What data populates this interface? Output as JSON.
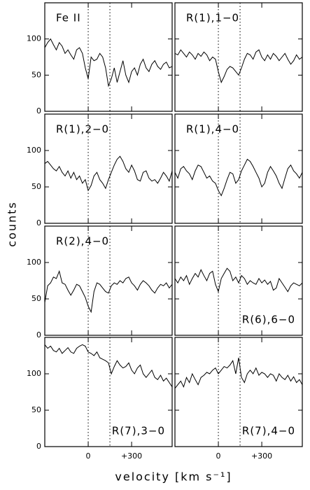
{
  "axis_labels": {
    "x": "velocity [km s⁻¹]",
    "y": "counts"
  },
  "chart_data": [
    {
      "type": "line",
      "label": "Fe II",
      "label_corner": "upper left",
      "color": "#000000",
      "x": [
        -300,
        -280,
        -260,
        -240,
        -220,
        -200,
        -180,
        -160,
        -140,
        -120,
        -100,
        -80,
        -60,
        -40,
        -20,
        0,
        20,
        40,
        60,
        80,
        100,
        120,
        140,
        160,
        180,
        200,
        220,
        240,
        260,
        280,
        300,
        320,
        340,
        360,
        380,
        400,
        420,
        440,
        460,
        480,
        500,
        520,
        540,
        560,
        580
      ],
      "values": [
        88,
        95,
        100,
        92,
        85,
        95,
        90,
        80,
        85,
        78,
        72,
        85,
        88,
        80,
        60,
        45,
        75,
        70,
        72,
        80,
        75,
        60,
        35,
        45,
        60,
        40,
        55,
        70,
        50,
        40,
        55,
        60,
        50,
        65,
        72,
        60,
        55,
        65,
        70,
        62,
        58,
        65,
        68,
        60,
        62
      ],
      "xlim": [
        -300,
        580
      ],
      "ylim": [
        0,
        150
      ],
      "xticks": [
        0,
        {
          "value": 300,
          "label": "+300"
        }
      ],
      "yticks": [
        0,
        50,
        100
      ],
      "markers": [
        0,
        150
      ]
    },
    {
      "type": "line",
      "label": "R(1),1−0",
      "label_corner": "upper left",
      "color": "#000000",
      "x": [
        -300,
        -280,
        -260,
        -240,
        -220,
        -200,
        -180,
        -160,
        -140,
        -120,
        -100,
        -80,
        -60,
        -40,
        -20,
        0,
        20,
        40,
        60,
        80,
        100,
        120,
        140,
        160,
        180,
        200,
        220,
        240,
        260,
        280,
        300,
        320,
        340,
        360,
        380,
        400,
        420,
        440,
        460,
        480,
        500,
        520,
        540,
        560,
        580
      ],
      "values": [
        80,
        78,
        85,
        80,
        75,
        82,
        78,
        72,
        80,
        76,
        82,
        78,
        70,
        75,
        72,
        55,
        40,
        48,
        58,
        62,
        60,
        55,
        50,
        60,
        72,
        80,
        78,
        72,
        82,
        85,
        75,
        70,
        78,
        72,
        80,
        76,
        70,
        75,
        80,
        72,
        65,
        70,
        78,
        72,
        75
      ],
      "xlim": [
        -300,
        580
      ],
      "ylim": [
        0,
        150
      ],
      "xticks": [
        0,
        {
          "value": 300,
          "label": "+300"
        }
      ],
      "yticks": [
        0,
        50,
        100
      ],
      "markers": [
        0,
        150
      ]
    },
    {
      "type": "line",
      "label": "R(1),2−0",
      "label_corner": "upper left",
      "color": "#000000",
      "x": [
        -300,
        -280,
        -260,
        -240,
        -220,
        -200,
        -180,
        -160,
        -140,
        -120,
        -100,
        -80,
        -60,
        -40,
        -20,
        0,
        20,
        40,
        60,
        80,
        100,
        120,
        140,
        160,
        180,
        200,
        220,
        240,
        260,
        280,
        300,
        320,
        340,
        360,
        380,
        400,
        420,
        440,
        460,
        480,
        500,
        520,
        540,
        560,
        580
      ],
      "values": [
        82,
        85,
        80,
        75,
        72,
        78,
        70,
        65,
        72,
        62,
        70,
        60,
        65,
        55,
        60,
        45,
        52,
        65,
        70,
        60,
        55,
        48,
        60,
        70,
        80,
        88,
        92,
        85,
        75,
        70,
        80,
        72,
        60,
        58,
        70,
        72,
        62,
        58,
        60,
        55,
        62,
        70,
        65,
        58,
        72
      ],
      "xlim": [
        -300,
        580
      ],
      "ylim": [
        0,
        150
      ],
      "xticks": [
        0,
        {
          "value": 300,
          "label": "+300"
        }
      ],
      "yticks": [
        0,
        50,
        100
      ],
      "markers": [
        0,
        150
      ]
    },
    {
      "type": "line",
      "label": "R(1),4−0",
      "label_corner": "upper left",
      "color": "#000000",
      "x": [
        -300,
        -280,
        -260,
        -240,
        -220,
        -200,
        -180,
        -160,
        -140,
        -120,
        -100,
        -80,
        -60,
        -40,
        -20,
        0,
        20,
        40,
        60,
        80,
        100,
        120,
        140,
        160,
        180,
        200,
        220,
        240,
        260,
        280,
        300,
        320,
        340,
        360,
        380,
        400,
        420,
        440,
        460,
        480,
        500,
        520,
        540,
        560,
        580
      ],
      "values": [
        70,
        62,
        75,
        78,
        72,
        68,
        60,
        72,
        80,
        78,
        70,
        62,
        65,
        58,
        55,
        45,
        38,
        48,
        60,
        70,
        68,
        55,
        60,
        72,
        80,
        88,
        85,
        78,
        70,
        62,
        50,
        55,
        70,
        78,
        72,
        65,
        55,
        48,
        62,
        75,
        80,
        72,
        68,
        62,
        70
      ],
      "xlim": [
        -300,
        580
      ],
      "ylim": [
        0,
        150
      ],
      "xticks": [
        0,
        {
          "value": 300,
          "label": "+300"
        }
      ],
      "yticks": [
        0,
        50,
        100
      ],
      "markers": [
        0,
        150
      ]
    },
    {
      "type": "line",
      "label": "R(2),4−0",
      "label_corner": "upper left",
      "color": "#000000",
      "x": [
        -300,
        -280,
        -260,
        -240,
        -220,
        -200,
        -180,
        -160,
        -140,
        -120,
        -100,
        -80,
        -60,
        -40,
        -20,
        0,
        20,
        40,
        60,
        80,
        100,
        120,
        140,
        160,
        180,
        200,
        220,
        240,
        260,
        280,
        300,
        320,
        340,
        360,
        380,
        400,
        420,
        440,
        460,
        480,
        500,
        520,
        540,
        560,
        580
      ],
      "values": [
        45,
        68,
        72,
        80,
        78,
        88,
        72,
        70,
        62,
        55,
        62,
        70,
        68,
        60,
        52,
        40,
        32,
        60,
        72,
        70,
        65,
        60,
        58,
        68,
        72,
        70,
        75,
        72,
        78,
        80,
        72,
        68,
        62,
        70,
        75,
        72,
        68,
        62,
        58,
        65,
        70,
        68,
        72,
        65,
        70
      ],
      "xlim": [
        -300,
        580
      ],
      "ylim": [
        0,
        150
      ],
      "xticks": [
        0,
        {
          "value": 300,
          "label": "+300"
        }
      ],
      "yticks": [
        0,
        50,
        100
      ],
      "markers": [
        0,
        150
      ]
    },
    {
      "type": "line",
      "label": "R(6),6−0",
      "label_corner": "lower right",
      "color": "#000000",
      "x": [
        -300,
        -280,
        -260,
        -240,
        -220,
        -200,
        -180,
        -160,
        -140,
        -120,
        -100,
        -80,
        -60,
        -40,
        -20,
        0,
        20,
        40,
        60,
        80,
        100,
        120,
        140,
        160,
        180,
        200,
        220,
        240,
        260,
        280,
        300,
        320,
        340,
        360,
        380,
        400,
        420,
        440,
        460,
        480,
        500,
        520,
        540,
        560,
        580
      ],
      "values": [
        78,
        72,
        80,
        75,
        82,
        70,
        78,
        85,
        80,
        90,
        82,
        75,
        85,
        88,
        70,
        60,
        78,
        85,
        92,
        88,
        75,
        80,
        72,
        82,
        78,
        70,
        75,
        72,
        70,
        78,
        72,
        76,
        70,
        74,
        62,
        65,
        78,
        72,
        66,
        60,
        68,
        72,
        70,
        68,
        72
      ],
      "xlim": [
        -300,
        580
      ],
      "ylim": [
        0,
        150
      ],
      "xticks": [
        0,
        {
          "value": 300,
          "label": "+300"
        }
      ],
      "yticks": [
        0,
        50,
        100
      ],
      "markers": [
        0,
        150
      ]
    },
    {
      "type": "line",
      "label": "R(7),3−0",
      "label_corner": "lower right",
      "color": "#000000",
      "x": [
        -300,
        -280,
        -260,
        -240,
        -220,
        -200,
        -180,
        -160,
        -140,
        -120,
        -100,
        -80,
        -60,
        -40,
        -20,
        0,
        20,
        40,
        60,
        80,
        100,
        120,
        140,
        160,
        180,
        200,
        220,
        240,
        260,
        280,
        300,
        320,
        340,
        360,
        380,
        400,
        420,
        440,
        460,
        480,
        500,
        520,
        540,
        560,
        580
      ],
      "values": [
        140,
        135,
        138,
        132,
        130,
        135,
        128,
        132,
        136,
        130,
        128,
        135,
        138,
        140,
        138,
        130,
        128,
        125,
        130,
        122,
        120,
        118,
        115,
        100,
        110,
        118,
        112,
        108,
        110,
        115,
        105,
        100,
        108,
        112,
        100,
        95,
        100,
        105,
        95,
        92,
        98,
        90,
        94,
        88,
        82
      ],
      "xlim": [
        -300,
        580
      ],
      "ylim": [
        0,
        150
      ],
      "xticks": [
        0,
        {
          "value": 300,
          "label": "+300"
        }
      ],
      "yticks": [
        0,
        50,
        100
      ],
      "markers": [
        0,
        150
      ]
    },
    {
      "type": "line",
      "label": "R(7),4−0",
      "label_corner": "lower right",
      "color": "#000000",
      "x": [
        -300,
        -280,
        -260,
        -240,
        -220,
        -200,
        -180,
        -160,
        -140,
        -120,
        -100,
        -80,
        -60,
        -40,
        -20,
        0,
        20,
        40,
        60,
        80,
        100,
        120,
        140,
        160,
        180,
        200,
        220,
        240,
        260,
        280,
        300,
        320,
        340,
        360,
        380,
        400,
        420,
        440,
        460,
        480,
        500,
        520,
        540,
        560,
        580
      ],
      "values": [
        80,
        85,
        90,
        82,
        95,
        88,
        100,
        92,
        85,
        95,
        98,
        102,
        100,
        105,
        108,
        100,
        105,
        110,
        108,
        112,
        118,
        100,
        122,
        95,
        88,
        100,
        105,
        100,
        108,
        98,
        102,
        100,
        95,
        100,
        98,
        90,
        100,
        95,
        92,
        98,
        90,
        96,
        88,
        92,
        85
      ],
      "xlim": [
        -300,
        580
      ],
      "ylim": [
        0,
        150
      ],
      "xticks": [
        0,
        {
          "value": 300,
          "label": "+300"
        }
      ],
      "yticks": [
        0,
        50,
        100
      ],
      "markers": [
        0,
        150
      ]
    }
  ]
}
